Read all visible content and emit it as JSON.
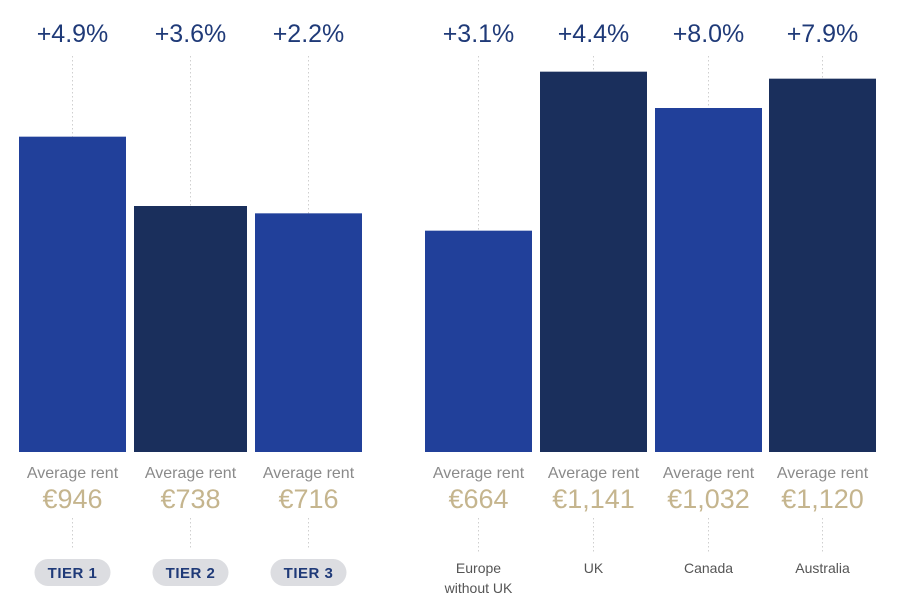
{
  "colors": {
    "bar_bright": "#21409a",
    "bar_dark": "#1a2f5c",
    "pct_text": "#1f3a78",
    "label_text": "#8a8a8a",
    "value_text": "#c5b58e",
    "category_text": "#555555",
    "tier_pill_bg": "#dcdde1",
    "tier_pill_text": "#1f3a78",
    "leader_line": "#cfcfcf"
  },
  "chart_data": [
    {
      "type": "bar",
      "categories": [
        "TIER 1",
        "TIER 2",
        "TIER 3"
      ],
      "values": [
        946,
        738,
        716
      ],
      "changes": [
        "+4.9%",
        "+3.6%",
        "+2.2%"
      ],
      "value_labels": [
        "€946",
        "€738",
        "€716"
      ],
      "bar_caption": "Average rent",
      "category_style": "pill",
      "bar_colors": [
        "#21409a",
        "#1a2f5c",
        "#21409a"
      ]
    },
    {
      "type": "bar",
      "categories": [
        "Europe\nwithout UK",
        "UK",
        "Canada",
        "Australia"
      ],
      "values": [
        664,
        1141,
        1032,
        1120
      ],
      "changes": [
        "+3.1%",
        "+4.4%",
        "+8.0%",
        "+7.9%"
      ],
      "value_labels": [
        "€664",
        "€1,141",
        "€1,032",
        "€1,120"
      ],
      "bar_caption": "Average rent",
      "category_style": "plain",
      "bar_colors": [
        "#21409a",
        "#1a2f5c",
        "#21409a",
        "#1a2f5c"
      ]
    }
  ]
}
